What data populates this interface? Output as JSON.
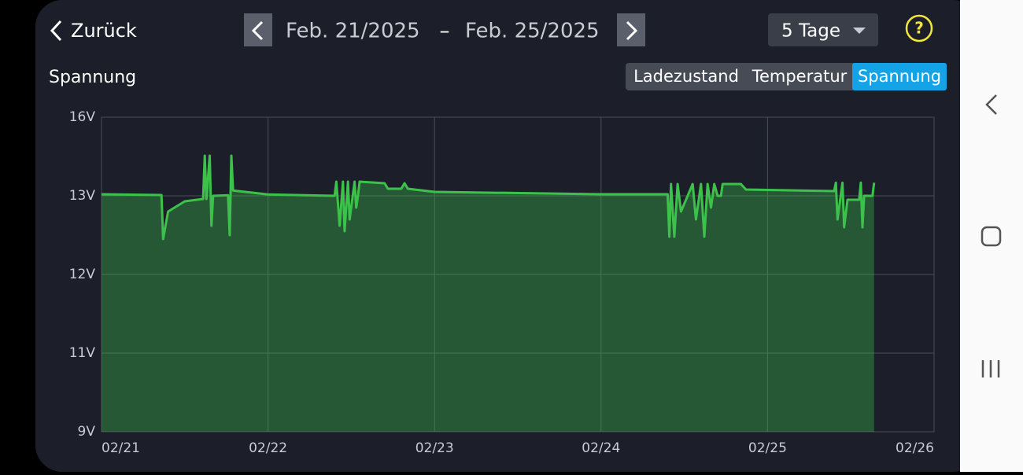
{
  "header": {
    "back": "Zurück",
    "date_start": "Feb. 21/2025",
    "date_separator": "–",
    "date_end": "Feb. 25/2025",
    "range": "5 Tage",
    "help": "?"
  },
  "tabs": [
    "Ladezustand",
    "Temperatur",
    "Spannung"
  ],
  "active_tab": 2,
  "chart_data": {
    "type": "area",
    "title": "Spannung",
    "color": "#3cc24a",
    "grid": true,
    "x": [
      0,
      0.36,
      0.37,
      0.4,
      0.5,
      0.61,
      0.62,
      0.63,
      0.65,
      0.66,
      0.67,
      0.76,
      0.77,
      0.78,
      0.79,
      1,
      1.4,
      1.41,
      1.43,
      1.45,
      1.46,
      1.48,
      1.49,
      1.52,
      1.53,
      1.54,
      1.55,
      1.7,
      1.72,
      1.8,
      1.82,
      1.84,
      2,
      3,
      3.4,
      3.41,
      3.42,
      3.44,
      3.46,
      3.48,
      3.5,
      3.55,
      3.57,
      3.6,
      3.62,
      3.64,
      3.66,
      3.68,
      3.7,
      3.72,
      3.73,
      3.84,
      3.87,
      4.4,
      4.41,
      4.42,
      4.45,
      4.46,
      4.48,
      4.55,
      4.56,
      4.57,
      4.58,
      4.63,
      4.64
    ],
    "values": [
      13.06,
      13.03,
      12.45,
      12.8,
      12.93,
      12.96,
      14.53,
      12.96,
      14.53,
      12.62,
      13,
      13.02,
      12.5,
      14.53,
      13.2,
      13.05,
      13,
      13.54,
      12.62,
      13.54,
      12.55,
      13.54,
      12.7,
      13.54,
      12.85,
      13,
      13.54,
      13.48,
      13.27,
      13.27,
      13.48,
      13.27,
      13.15,
      13.06,
      13.06,
      12.48,
      13.45,
      12.48,
      13.45,
      12.8,
      12.9,
      13.45,
      12.7,
      13.45,
      12.48,
      13.45,
      12.85,
      13.45,
      13,
      13,
      13.45,
      13.45,
      13.24,
      13.18,
      13.5,
      12.7,
      13.5,
      12.6,
      12.95,
      12.95,
      13.5,
      12.6,
      13,
      13,
      13.5
    ],
    "xlim": [
      0,
      5
    ],
    "xticks": [
      {
        "value": 0,
        "label": "02/21"
      },
      {
        "value": 1,
        "label": "02/22"
      },
      {
        "value": 2,
        "label": "02/23"
      },
      {
        "value": 3,
        "label": "02/24"
      },
      {
        "value": 4,
        "label": "02/25"
      },
      {
        "value": 5,
        "label": "02/26"
      }
    ],
    "ylim": [
      9,
      16
    ],
    "yticks": [
      {
        "value": 9,
        "label": "9V"
      },
      {
        "value": 11,
        "label": "11V"
      },
      {
        "value": 12,
        "label": "12V"
      },
      {
        "value": 13,
        "label": "13V"
      },
      {
        "value": 16,
        "label": "16V"
      }
    ]
  }
}
